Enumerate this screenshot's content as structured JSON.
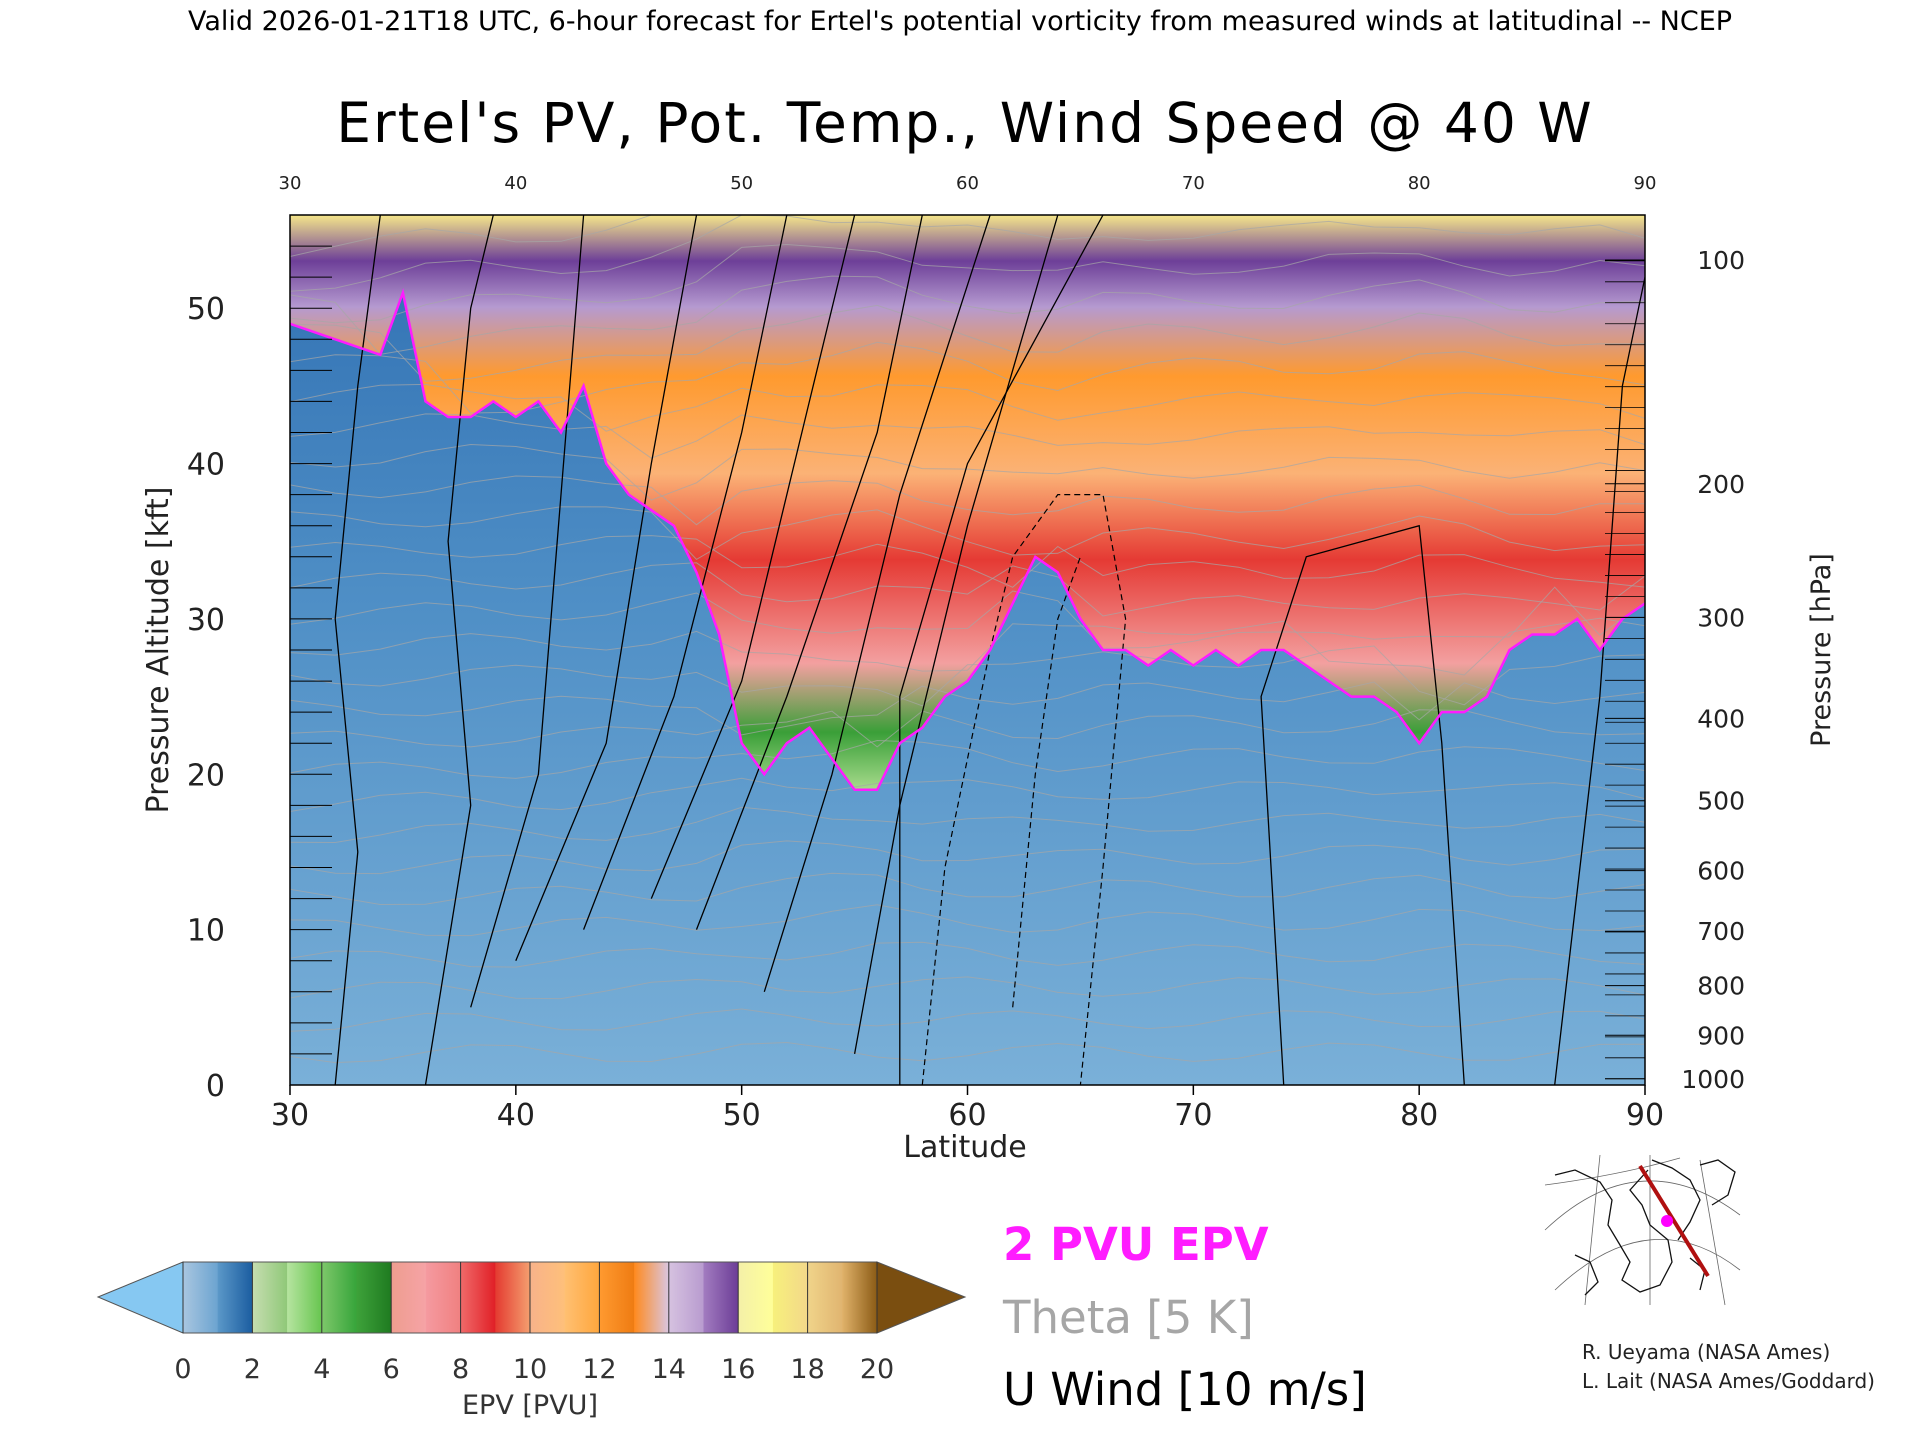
{
  "header": {
    "valid_line": "Valid 2026-01-21T18 UTC, 6-hour forecast for Ertel's potential vorticity from measured winds at latitudinal -- NCEP"
  },
  "chart_data": {
    "type": "heatmap",
    "title": "Ertel's PV, Pot. Temp., Wind Speed @ 40 W",
    "xlabel": "Latitude",
    "ylabel": "Pressure Altitude [kft]",
    "y2label": "Pressure [hPa]",
    "xlim": [
      30,
      90
    ],
    "ylim": [
      0,
      56
    ],
    "x_ticks": [
      30,
      40,
      50,
      60,
      70,
      80,
      90
    ],
    "top_ticks": [
      30,
      40,
      50,
      60,
      70,
      80,
      90
    ],
    "y_ticks": [
      0,
      10,
      20,
      30,
      40,
      50
    ],
    "pressure_ticks": [
      {
        "label": "100",
        "kft": 53.1
      },
      {
        "label": "200",
        "kft": 38.7
      },
      {
        "label": "300",
        "kft": 30.1
      },
      {
        "label": "400",
        "kft": 23.6
      },
      {
        "label": "500",
        "kft": 18.3
      },
      {
        "label": "600",
        "kft": 13.8
      },
      {
        "label": "700",
        "kft": 9.9
      },
      {
        "label": "800",
        "kft": 6.4
      },
      {
        "label": "900",
        "kft": 3.2
      },
      {
        "label": "1000",
        "kft": 0.4
      }
    ],
    "tropopause_2pvu": {
      "lat": [
        30,
        32,
        34,
        35,
        36,
        37,
        38,
        39,
        40,
        41,
        42,
        43,
        44,
        45,
        46,
        47,
        48,
        49,
        50,
        51,
        52,
        53,
        54,
        55,
        56,
        57,
        58,
        59,
        60,
        61,
        62,
        63,
        64,
        65,
        66,
        67,
        68,
        69,
        70,
        71,
        72,
        73,
        74,
        75,
        76,
        77,
        78,
        79,
        80,
        81,
        82,
        83,
        84,
        85,
        86,
        87,
        88,
        89,
        90
      ],
      "kft": [
        49,
        48,
        47,
        51,
        44,
        43,
        43,
        44,
        43,
        44,
        42,
        45,
        40,
        38,
        37,
        36,
        33,
        29,
        22,
        20,
        22,
        23,
        21,
        19,
        19,
        22,
        23,
        25,
        26,
        28,
        31,
        34,
        33,
        30,
        28,
        28,
        27,
        28,
        27,
        28,
        27,
        28,
        28,
        27,
        26,
        25,
        25,
        24,
        22,
        24,
        24,
        25,
        28,
        29,
        29,
        30,
        28,
        30,
        31
      ]
    },
    "u_wind_contours_kts": [
      0,
      10,
      30,
      40,
      50,
      60,
      70
    ],
    "colorbar": {
      "label": "EPV [PVU]",
      "ticks": [
        0,
        2,
        4,
        6,
        8,
        10,
        12,
        14,
        16,
        18,
        20
      ],
      "bins": [
        {
          "from": 0,
          "to": 1,
          "colors": [
            "#a9c6e0",
            "#6ba3d0"
          ]
        },
        {
          "from": 1,
          "to": 2,
          "colors": [
            "#5b98c8",
            "#1a5ca0"
          ]
        },
        {
          "from": 2,
          "to": 3,
          "colors": [
            "#c6ddb0",
            "#8fc878"
          ]
        },
        {
          "from": 3,
          "to": 4,
          "colors": [
            "#b6e4a0",
            "#66c54e"
          ]
        },
        {
          "from": 4,
          "to": 5,
          "colors": [
            "#7dc86a",
            "#36a43a"
          ]
        },
        {
          "from": 5,
          "to": 6,
          "colors": [
            "#3ea23a",
            "#1e7a20"
          ]
        },
        {
          "from": 6,
          "to": 7,
          "colors": [
            "#ee9d8f",
            "#f6a3a6"
          ]
        },
        {
          "from": 7,
          "to": 8,
          "colors": [
            "#f59aa0",
            "#f08080"
          ]
        },
        {
          "from": 8,
          "to": 9,
          "colors": [
            "#f06a6a",
            "#e01e25"
          ]
        },
        {
          "from": 9,
          "to": 10,
          "colors": [
            "#e43a30",
            "#f4a070"
          ]
        },
        {
          "from": 10,
          "to": 11,
          "colors": [
            "#f8b28a",
            "#fec07a"
          ]
        },
        {
          "from": 11,
          "to": 12,
          "colors": [
            "#ffc072",
            "#ffa63c"
          ]
        },
        {
          "from": 12,
          "to": 13,
          "colors": [
            "#ff9a30",
            "#ee7b12"
          ]
        },
        {
          "from": 13,
          "to": 14,
          "colors": [
            "#ff8a1e",
            "#d9c7e4"
          ]
        },
        {
          "from": 14,
          "to": 15,
          "colors": [
            "#d6c2e0",
            "#b89bcf"
          ]
        },
        {
          "from": 15,
          "to": 16,
          "colors": [
            "#a27cc0",
            "#6b3c96"
          ]
        },
        {
          "from": 16,
          "to": 17,
          "colors": [
            "#f4f0a8",
            "#ffff99"
          ]
        },
        {
          "from": 17,
          "to": 18,
          "colors": [
            "#f7f07c",
            "#f3d88a"
          ]
        },
        {
          "from": 18,
          "to": 19,
          "colors": [
            "#f0d48a",
            "#e0b470"
          ]
        },
        {
          "from": 19,
          "to": 20,
          "colors": [
            "#e0b26a",
            "#8a5a14"
          ]
        }
      ],
      "under_color": "#86c8f2",
      "over_color": "#7a4e10"
    }
  },
  "legend": {
    "pvu_label": "2 PVU EPV",
    "theta_label": "Theta [5 K]",
    "wind_label": "U Wind [10 m/s]",
    "pvu_color": "#ff1cff",
    "theta_color": "#a6a6a6",
    "wind_color": "#000000"
  },
  "credits": {
    "line1": "R. Ueyama (NASA Ames)",
    "line2": "L. Lait (NASA Ames/Goddard)"
  },
  "inset_map": {
    "track_color": "#b01010",
    "marker_color": "#ff00ff"
  }
}
